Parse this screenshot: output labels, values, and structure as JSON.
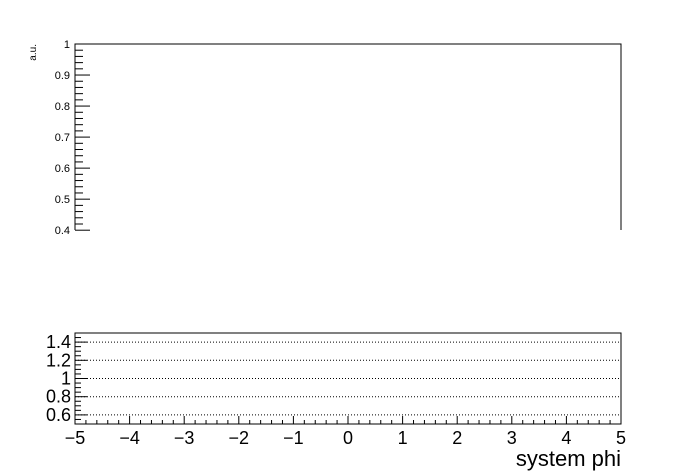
{
  "chart_data": [
    {
      "panel": "main",
      "type": "line",
      "title": "",
      "xlabel": "",
      "ylabel": "a.u.",
      "ylim": [
        0.4,
        1.0
      ],
      "y_ticks": [
        "0.4",
        "0.5",
        "0.6",
        "0.7",
        "0.8",
        "0.9",
        "1"
      ],
      "series": [],
      "grid": false
    },
    {
      "panel": "ratio",
      "type": "line",
      "title": "",
      "xlabel": "system phi",
      "ylabel": "",
      "xlim": [
        -5,
        5
      ],
      "ylim": [
        0.5,
        1.5
      ],
      "x_ticks": [
        "−5",
        "−4",
        "−3",
        "−2",
        "−1",
        "0",
        "1",
        "2",
        "3",
        "4",
        "5"
      ],
      "y_ticks": [
        "0.6",
        "0.8",
        "1",
        "1.2",
        "1.4"
      ],
      "horizontal_gridlines": [
        0.6,
        0.8,
        1.0,
        1.2,
        1.4
      ],
      "gridline_style": "dotted",
      "series": []
    }
  ]
}
